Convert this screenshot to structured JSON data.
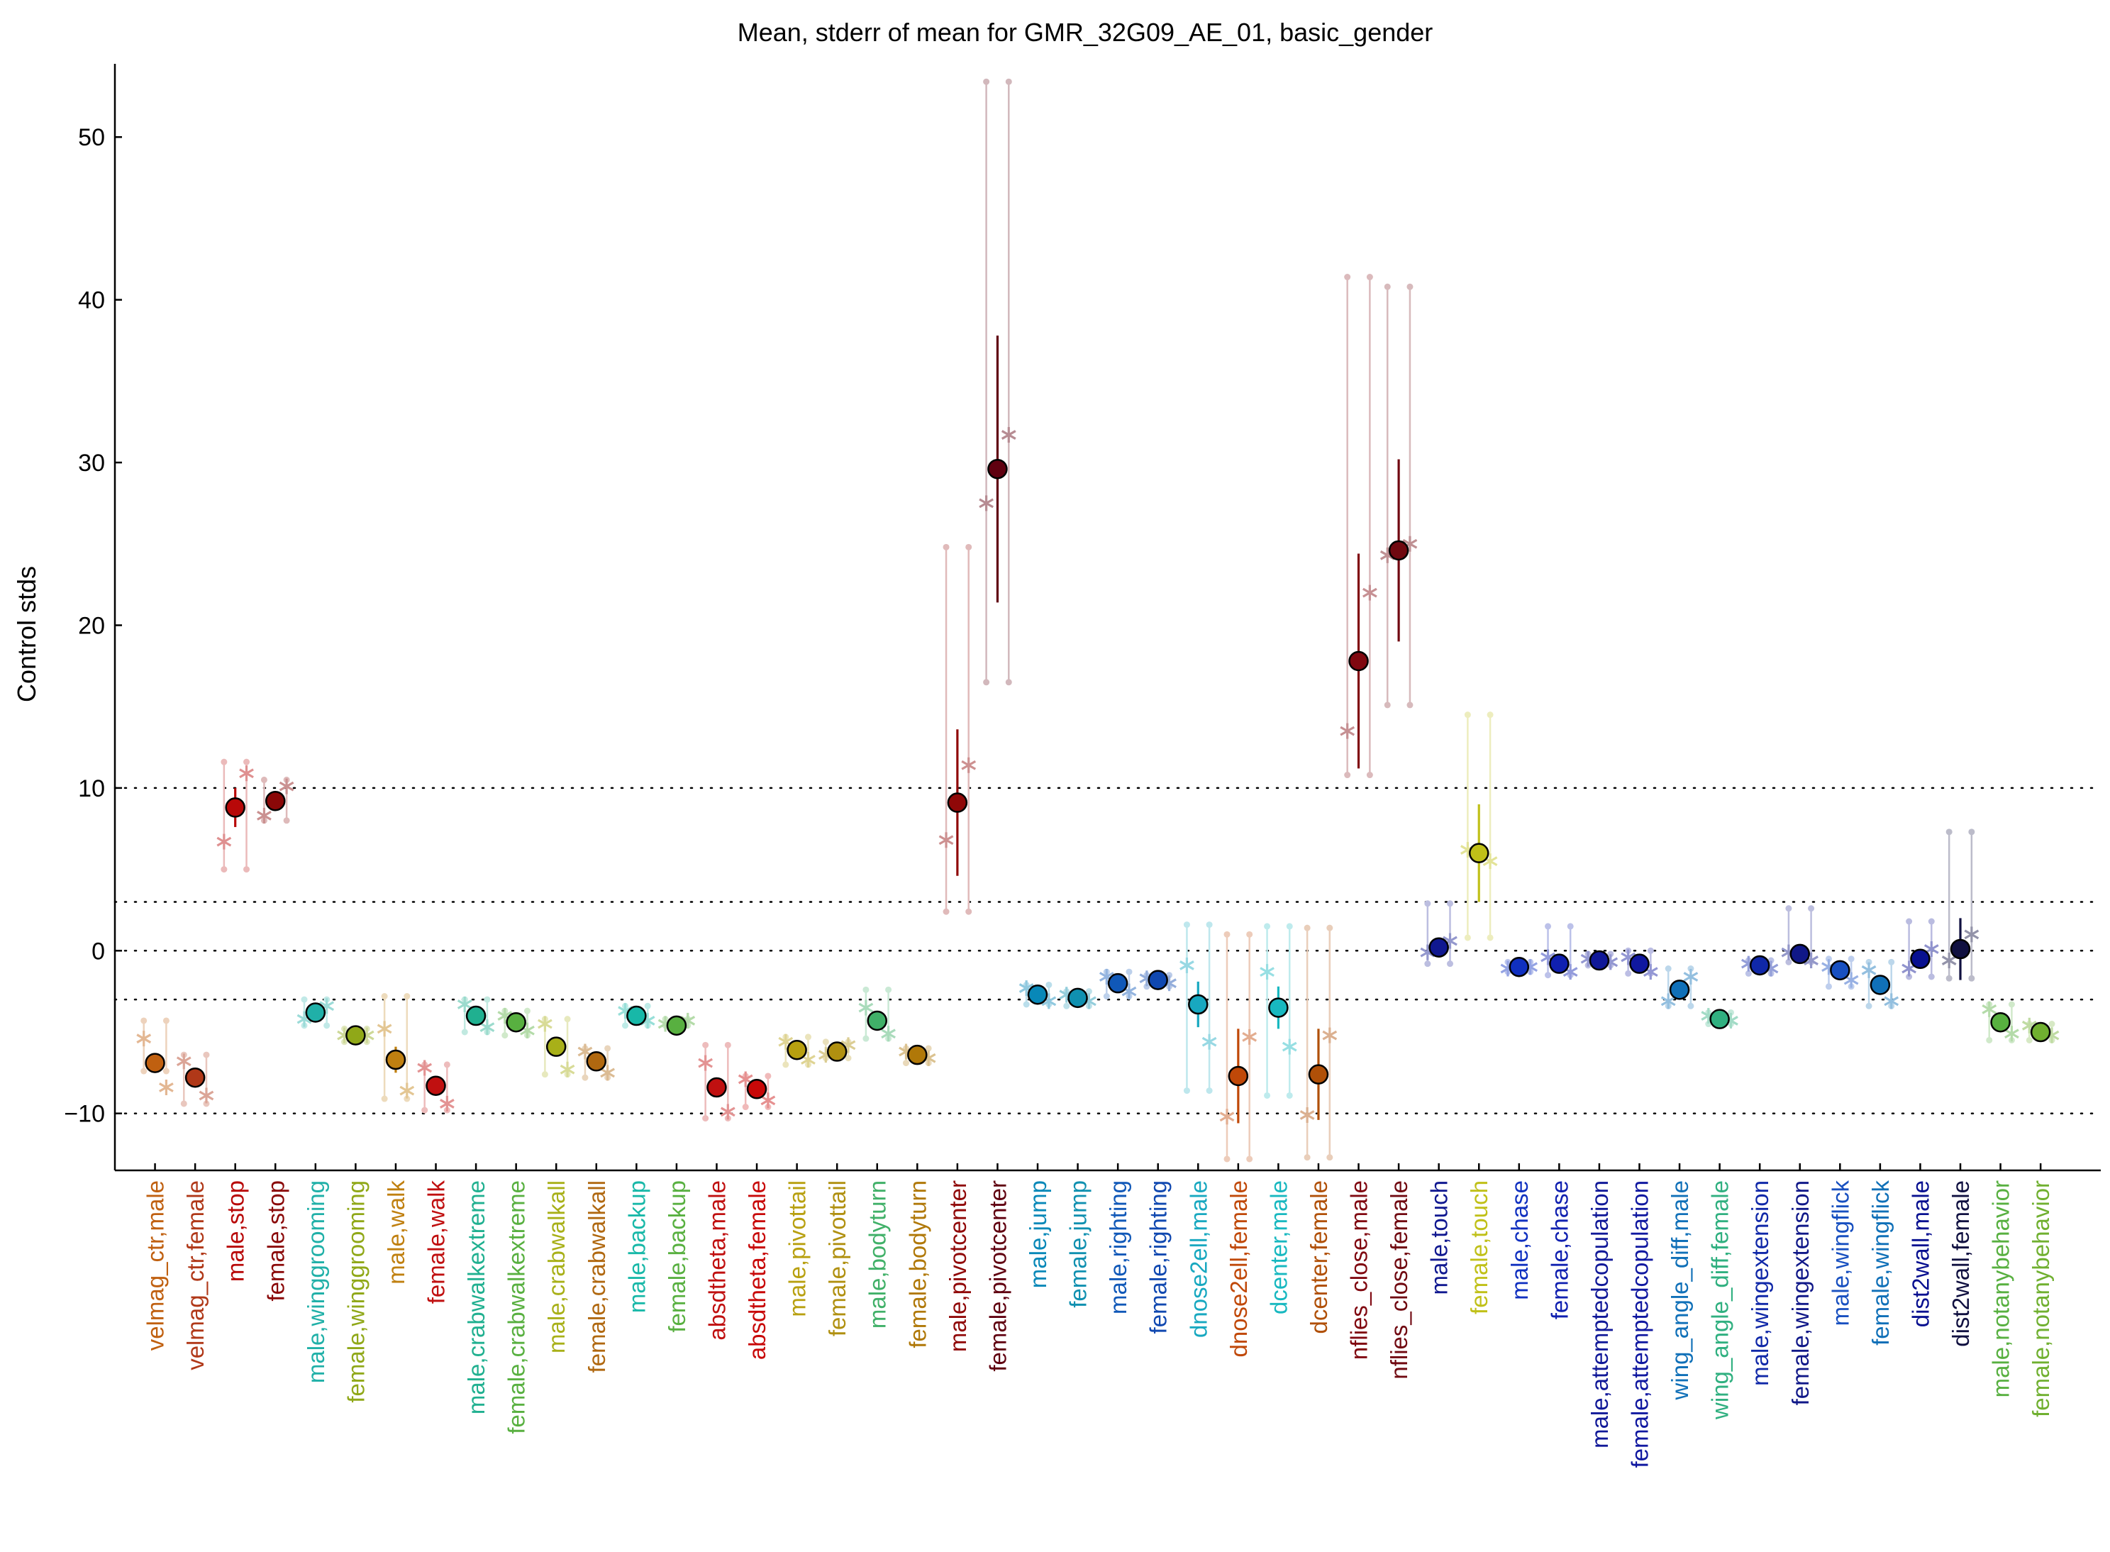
{
  "chart_data": {
    "type": "scatter",
    "title": "Mean, stderr of mean for GMR_32G09_AE_01, basic_gender",
    "ylabel": "Control stds",
    "xlabel": "",
    "ylim": [
      -13.5,
      54.5
    ],
    "yticks": [
      -10,
      0,
      10,
      20,
      30,
      40,
      50
    ],
    "reference_lines": [
      -10,
      -3,
      0,
      3,
      10
    ],
    "grid": false,
    "legend": "none",
    "categories": [
      "velmag_ctr,male",
      "velmag_ctr,female",
      "male,stop",
      "female,stop",
      "male,winggrooming",
      "female,winggrooming",
      "male,walk",
      "female,walk",
      "male,crabwalkextreme",
      "female,crabwalkextreme",
      "male,crabwalkall",
      "female,crabwalkall",
      "male,backup",
      "female,backup",
      "absdtheta,male",
      "absdtheta,female",
      "male,pivottail",
      "female,pivottail",
      "male,bodyturn",
      "female,bodyturn",
      "male,pivotcenter",
      "female,pivotcenter",
      "male,jump",
      "female,jump",
      "male,righting",
      "female,righting",
      "dnose2ell,male",
      "dnose2ell,female",
      "dcenter,male",
      "dcenter,female",
      "nflies_close,male",
      "nflies_close,female",
      "male,touch",
      "female,touch",
      "male,chase",
      "female,chase",
      "male,attemptedcopulation",
      "female,attemptedcopulation",
      "wing_angle_diff,male",
      "wing_angle_diff,female",
      "male,wingextension",
      "female,wingextension",
      "male,wingflick",
      "female,wingflick",
      "dist2wall,male",
      "dist2wall,female",
      "male,notanybehavior",
      "female,notanybehavior"
    ],
    "colors": [
      "#c06010",
      "#b03818",
      "#b80808",
      "#8a0808",
      "#20b0a8",
      "#90a818",
      "#c08010",
      "#c01010",
      "#20b090",
      "#58b040",
      "#a8b018",
      "#b06810",
      "#18b8a8",
      "#58b040",
      "#c01010",
      "#c80808",
      "#b8a010",
      "#b09010",
      "#40b068",
      "#b07808",
      "#900808",
      "#600010",
      "#0888b8",
      "#1090b0",
      "#1058b8",
      "#1048b0",
      "#18a8c0",
      "#c04808",
      "#18b8c0",
      "#b05008",
      "#800810",
      "#700810",
      "#101890",
      "#c0c018",
      "#1030c0",
      "#1020b0",
      "#101898",
      "#1018a0",
      "#1070b8",
      "#30b080",
      "#1028a8",
      "#101888",
      "#1850c0",
      "#1070b8",
      "#081090",
      "#101040",
      "#58b040",
      "#70b030"
    ],
    "values": [
      -6.9,
      -7.8,
      8.8,
      9.2,
      -3.8,
      -5.2,
      -6.7,
      -8.3,
      -4.0,
      -4.4,
      -5.9,
      -6.8,
      -4.0,
      -4.6,
      -8.4,
      -8.5,
      -6.1,
      -6.2,
      -4.3,
      -6.4,
      9.1,
      29.6,
      -2.7,
      -2.9,
      -2.0,
      -1.8,
      -3.3,
      -7.7,
      -3.5,
      -7.6,
      17.8,
      24.6,
      0.2,
      6.0,
      -1.0,
      -0.8,
      -0.6,
      -0.8,
      -2.4,
      -4.2,
      -0.9,
      -0.2,
      -1.2,
      -2.1,
      -0.5,
      0.1,
      -4.4,
      -5.0
    ],
    "stderr": [
      0.6,
      0.4,
      1.2,
      0.5,
      0.2,
      0.2,
      0.8,
      0.3,
      0.4,
      0.3,
      0.3,
      0.3,
      0.2,
      0.2,
      0.5,
      0.3,
      0.3,
      0.2,
      0.4,
      0.3,
      4.5,
      8.2,
      0.2,
      0.2,
      0.2,
      0.2,
      1.4,
      2.9,
      1.3,
      2.8,
      6.6,
      5.6,
      0.6,
      3.0,
      0.2,
      0.3,
      0.2,
      0.2,
      0.4,
      0.2,
      0.2,
      0.4,
      0.2,
      0.3,
      0.4,
      1.9,
      0.2,
      0.2
    ],
    "line_genotypes": [
      [
        -5.4,
        -8.4
      ],
      [
        -6.8,
        -8.9
      ],
      [
        6.7,
        10.9
      ],
      [
        8.3,
        10.1
      ],
      [
        -4.2,
        -3.4
      ],
      [
        -5.2,
        -5.2
      ],
      [
        -4.8,
        -8.6
      ],
      [
        -7.2,
        -9.4
      ],
      [
        -3.3,
        -4.7
      ],
      [
        -4.0,
        -4.9
      ],
      [
        -4.5,
        -7.3
      ],
      [
        -6.2,
        -7.5
      ],
      [
        -3.7,
        -4.3
      ],
      [
        -4.5,
        -4.3
      ],
      [
        -6.9,
        -9.9
      ],
      [
        -7.9,
        -9.2
      ],
      [
        -5.6,
        -6.7
      ],
      [
        -6.4,
        -5.8
      ],
      [
        -3.5,
        -5.1
      ],
      [
        -6.2,
        -6.6
      ],
      [
        6.8,
        11.4
      ],
      [
        27.5,
        31.7
      ],
      [
        -2.3,
        -3.1
      ],
      [
        -2.7,
        -3.1
      ],
      [
        -1.6,
        -2.5
      ],
      [
        -1.7,
        -2.0
      ],
      [
        -0.9,
        -5.6
      ],
      [
        -10.2,
        -5.3
      ],
      [
        -1.3,
        -5.9
      ],
      [
        -10.1,
        -5.2
      ],
      [
        13.5,
        22.0
      ],
      [
        24.3,
        25.0
      ],
      [
        -0.1,
        0.6
      ],
      [
        6.2,
        5.5
      ],
      [
        -1.1,
        -1.0
      ],
      [
        -0.4,
        -1.3
      ],
      [
        -0.5,
        -0.7
      ],
      [
        -0.4,
        -1.3
      ],
      [
        -3.1,
        -1.6
      ],
      [
        -4.0,
        -4.3
      ],
      [
        -0.8,
        -1.1
      ],
      [
        -0.1,
        -0.6
      ],
      [
        -1.0,
        -1.8
      ],
      [
        -1.2,
        -3.1
      ],
      [
        -1.1,
        0.1
      ],
      [
        -0.6,
        1.0
      ],
      [
        -3.6,
        -5.1
      ],
      [
        -4.6,
        -5.2
      ]
    ],
    "line_ranges": [
      [
        -7.4,
        -4.3
      ],
      [
        -9.4,
        -6.4
      ],
      [
        5.0,
        11.6
      ],
      [
        8.0,
        10.5
      ],
      [
        -4.6,
        -3.0
      ],
      [
        -5.6,
        -4.8
      ],
      [
        -9.1,
        -2.8
      ],
      [
        -9.8,
        -7.0
      ],
      [
        -5.0,
        -3.0
      ],
      [
        -5.2,
        -3.7
      ],
      [
        -7.6,
        -4.2
      ],
      [
        -7.8,
        -6.0
      ],
      [
        -4.6,
        -3.4
      ],
      [
        -4.6,
        -4.2
      ],
      [
        -10.3,
        -5.8
      ],
      [
        -9.6,
        -7.7
      ],
      [
        -7.0,
        -5.3
      ],
      [
        -6.6,
        -5.6
      ],
      [
        -5.4,
        -2.4
      ],
      [
        -6.9,
        -6.0
      ],
      [
        2.4,
        24.8
      ],
      [
        16.5,
        53.4
      ],
      [
        -3.3,
        -2.1
      ],
      [
        -3.4,
        -2.5
      ],
      [
        -2.8,
        -1.3
      ],
      [
        -2.2,
        -1.5
      ],
      [
        -8.6,
        1.6
      ],
      [
        -12.8,
        1.0
      ],
      [
        -8.9,
        1.5
      ],
      [
        -12.7,
        1.4
      ],
      [
        10.8,
        41.4
      ],
      [
        15.1,
        40.8
      ],
      [
        -0.8,
        2.9
      ],
      [
        0.8,
        14.5
      ],
      [
        -1.3,
        -0.7
      ],
      [
        -1.5,
        1.5
      ],
      [
        -0.9,
        -0.2
      ],
      [
        -1.4,
        0.0
      ],
      [
        -3.4,
        -1.1
      ],
      [
        -4.5,
        -3.8
      ],
      [
        -1.4,
        -0.6
      ],
      [
        -0.7,
        2.6
      ],
      [
        -2.2,
        -0.5
      ],
      [
        -3.4,
        -0.7
      ],
      [
        -1.6,
        1.8
      ],
      [
        -1.7,
        7.3
      ],
      [
        -5.5,
        -3.3
      ],
      [
        -5.5,
        -4.5
      ]
    ]
  }
}
